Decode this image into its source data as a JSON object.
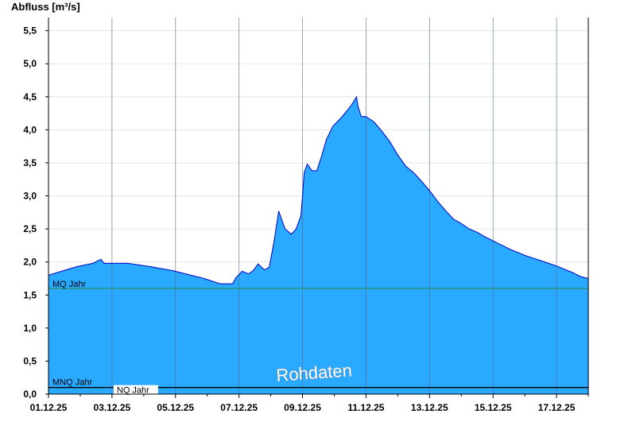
{
  "chart_data": {
    "type": "area",
    "ylabel": "Abfluss [m³/s]",
    "ylim": [
      0,
      5.7
    ],
    "yticks": [
      0,
      0.5,
      1.0,
      1.5,
      2.0,
      2.5,
      3.0,
      3.5,
      4.0,
      4.5,
      5.0,
      5.5
    ],
    "ytick_labels": [
      "0,0",
      "0,5",
      "1,0",
      "1,5",
      "2,0",
      "2,5",
      "3,0",
      "3,5",
      "4,0",
      "4,5",
      "5,0",
      "5,5"
    ],
    "xlim": [
      1,
      18
    ],
    "xticks": [
      1,
      3,
      5,
      7,
      9,
      11,
      13,
      15,
      17
    ],
    "xtick_labels": [
      "01.12.25",
      "03.12.25",
      "05.12.25",
      "07.12.25",
      "09.12.25",
      "11.12.25",
      "13.12.25",
      "15.12.25",
      "17.12.25"
    ],
    "grid": "vertical",
    "fill_color": "#29a9ff",
    "line_color": "#0000cc",
    "series": [
      {
        "x": [
          1.0,
          1.35,
          1.9,
          2.4,
          2.65,
          2.75,
          2.95,
          3.5,
          4.2,
          4.9,
          5.4,
          5.9,
          6.4,
          6.8,
          6.9,
          7.1,
          7.3,
          7.45,
          7.6,
          7.8,
          7.95,
          8.1,
          8.25,
          8.45,
          8.65,
          8.8,
          8.95,
          9.0,
          9.05,
          9.15,
          9.3,
          9.45,
          9.6,
          9.75,
          9.95,
          10.25,
          10.55,
          10.7,
          10.75,
          10.85,
          11.0,
          11.25,
          11.5,
          11.75,
          12.0,
          12.25,
          12.5,
          12.75,
          13.0,
          13.25,
          13.5,
          13.75,
          14.0,
          14.25,
          14.5,
          14.75,
          15.0,
          15.25,
          15.5,
          15.75,
          16.0,
          16.25,
          16.5,
          16.75,
          17.0,
          17.25,
          17.5,
          17.75,
          18.0
        ],
        "y": [
          1.8,
          1.85,
          1.93,
          1.98,
          2.04,
          1.98,
          1.98,
          1.98,
          1.93,
          1.87,
          1.81,
          1.75,
          1.67,
          1.67,
          1.76,
          1.86,
          1.82,
          1.87,
          1.97,
          1.88,
          1.92,
          2.3,
          2.77,
          2.5,
          2.42,
          2.5,
          2.7,
          3.0,
          3.35,
          3.48,
          3.38,
          3.38,
          3.6,
          3.85,
          4.05,
          4.2,
          4.38,
          4.5,
          4.35,
          4.2,
          4.2,
          4.12,
          3.98,
          3.82,
          3.62,
          3.45,
          3.35,
          3.22,
          3.08,
          2.92,
          2.78,
          2.65,
          2.58,
          2.5,
          2.45,
          2.38,
          2.32,
          2.26,
          2.2,
          2.15,
          2.1,
          2.06,
          2.02,
          1.98,
          1.94,
          1.89,
          1.84,
          1.78,
          1.75
        ]
      }
    ],
    "reference_lines": [
      {
        "label": "MQ Jahr",
        "value": 1.6,
        "color": "#2e8b3a"
      },
      {
        "label": "MNQ Jahr",
        "value": 0.1,
        "color": "#000000"
      },
      {
        "label": "NQ Jahr",
        "value": 0.1,
        "color": "#000000"
      }
    ],
    "watermark": "Rohdaten"
  }
}
